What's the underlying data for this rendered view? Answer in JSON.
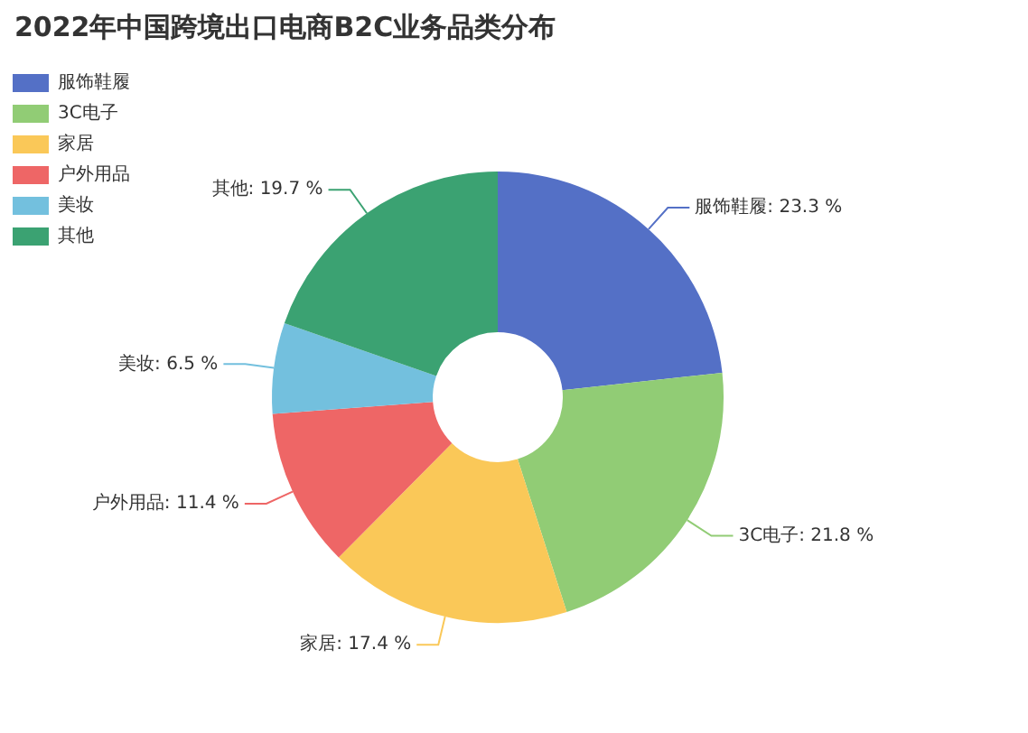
{
  "chart_data": {
    "type": "donut",
    "title": "2022年中国跨境出口电商B2C业务品类分布",
    "categories": [
      "服饰鞋履",
      "3C电子",
      "家居",
      "户外用品",
      "美妆",
      "其他"
    ],
    "values": [
      23.3,
      21.8,
      17.4,
      11.4,
      6.5,
      19.7
    ],
    "value_labels": [
      "服饰鞋履: 23.3 %",
      "3C电子: 21.8 %",
      "家居: 17.4 %",
      "户外用品: 11.4 %",
      "美妆: 6.5 %",
      "其他: 19.7 %"
    ],
    "colors": [
      "#5470c6",
      "#91cc75",
      "#fac858",
      "#ee6666",
      "#73c0de",
      "#3ba272"
    ],
    "legend": "top left"
  }
}
